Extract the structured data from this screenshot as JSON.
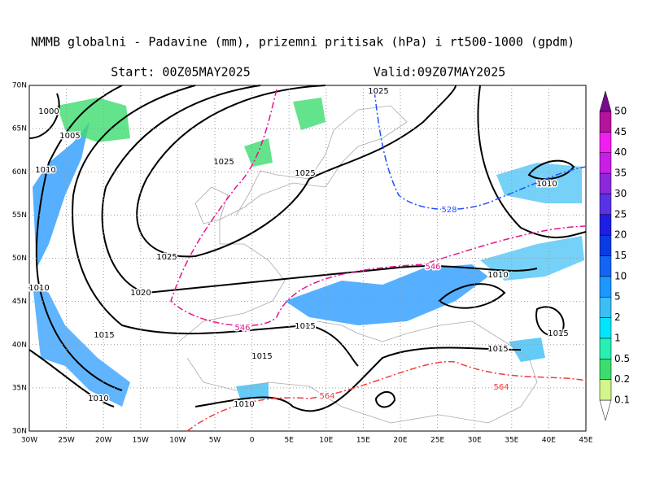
{
  "title": "NMMB globalni - Padavine (mm), prizemni pritisak (hPa) i rt500-1000 (gpdm)",
  "start": "Start: 00Z05MAY2025",
  "valid": "Valid:09Z07MAY2025",
  "lon_labels": [
    "30W",
    "25W",
    "20W",
    "15W",
    "10W",
    "5W",
    "0",
    "5E",
    "10E",
    "15E",
    "20E",
    "25E",
    "30E",
    "35E",
    "40E",
    "45E"
  ],
  "lat_labels": [
    "30N",
    "35N",
    "40N",
    "45N",
    "50N",
    "55N",
    "60N",
    "65N",
    "70N"
  ],
  "colorbar": {
    "levels": [
      0.1,
      0.2,
      0.5,
      1,
      2,
      5,
      10,
      15,
      20,
      25,
      30,
      35,
      40,
      45,
      50
    ],
    "colors": [
      "#d2f58c",
      "#3cdc6e",
      "#28f0b4",
      "#00e6ff",
      "#3cbef5",
      "#1e96ff",
      "#1464f5",
      "#0a3ce6",
      "#1e1ee6",
      "#5a32e6",
      "#8c28dc",
      "#c81ee6",
      "#f01ef0",
      "#b4149b",
      "#780a8c"
    ]
  },
  "isobar_labels": [
    1025,
    1000,
    1005,
    1010,
    1025,
    1025,
    1010,
    1025,
    1010,
    1010,
    1020,
    1015,
    1015,
    1015,
    1015,
    1015,
    1010,
    1010
  ],
  "thickness_labels": [
    528,
    546,
    546,
    564,
    564
  ]
}
